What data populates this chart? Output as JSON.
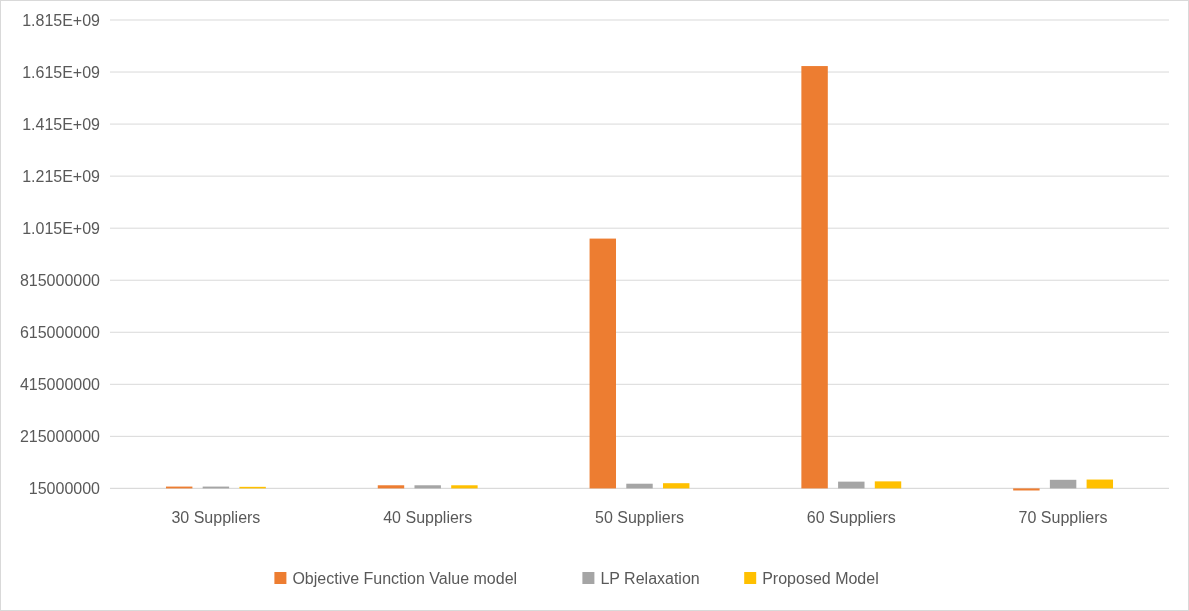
{
  "chart_data": {
    "type": "bar",
    "categories": [
      "30 Suppliers",
      "40 Suppliers",
      "50 Suppliers",
      "60 Suppliers",
      "70 Suppliers"
    ],
    "series": [
      {
        "name": "Objective Function Value model",
        "color": "#ed7d31",
        "base": [
          15000000,
          15000000,
          15000000,
          15000000,
          15000000
        ],
        "values": [
          7000000,
          12000000,
          960000000,
          1623000000,
          -8000000
        ]
      },
      {
        "name": "LP Relaxation",
        "color": "#a5a5a5",
        "base": [
          15000000,
          15000000,
          15000000,
          15000000,
          15000000
        ],
        "values": [
          7000000,
          12000000,
          18000000,
          26000000,
          33000000
        ]
      },
      {
        "name": "Proposed Model",
        "color": "#ffc000",
        "base": [
          15000000,
          15000000,
          15000000,
          15000000,
          15000000
        ],
        "values": [
          6000000,
          12000000,
          20000000,
          27000000,
          34000000
        ]
      }
    ],
    "ylim": [
      5000000,
      1815000000
    ],
    "yticks": [
      15000000,
      215000000,
      415000000,
      615000000,
      815000000,
      {
        "value": 1015000000,
        "label": "1.015E+09"
      },
      {
        "value": 1215000000,
        "label": "1.215E+09"
      },
      {
        "value": 1415000000,
        "label": "1.415E+09"
      },
      {
        "value": 1615000000,
        "label": "1.615E+09"
      },
      {
        "value": 1815000000,
        "label": "1.815E+09"
      }
    ],
    "grid": "y",
    "legend": "bottom"
  }
}
